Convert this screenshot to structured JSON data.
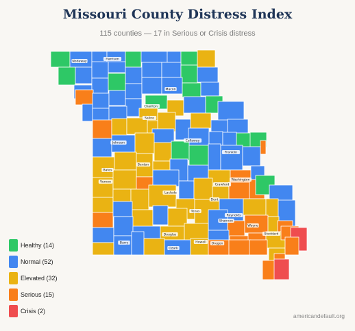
{
  "title": "Missouri County Distress Index",
  "subtitle": "115 counties — 17 in Serious or Crisis distress",
  "source": "americandefault.org",
  "colors": {
    "healthy": "#2ec866",
    "normal": "#4287f0",
    "elevated": "#eab313",
    "serious": "#f97f1a",
    "crisis": "#ef4d4f"
  },
  "legend": [
    {
      "key": "healthy",
      "label": "Healthy (14)"
    },
    {
      "key": "normal",
      "label": "Normal (52)"
    },
    {
      "key": "elevated",
      "label": "Elevated (32)"
    },
    {
      "key": "serious",
      "label": "Serious (15)"
    },
    {
      "key": "crisis",
      "label": "Crisis (2)"
    }
  ],
  "county_labels": [
    "Nodaway",
    "Harrison",
    "Macon",
    "Chariton",
    "Saline",
    "Callaway",
    "Johnson",
    "Franklin",
    "Benton",
    "Bates",
    "Crawford",
    "Washington",
    "Vernon",
    "Laclede",
    "Dent",
    "Texas",
    "Reynolds",
    "Shannon",
    "Wayne",
    "Stoddard",
    "Barry",
    "Douglas",
    "Ozark",
    "Howell",
    "Oregon"
  ]
}
